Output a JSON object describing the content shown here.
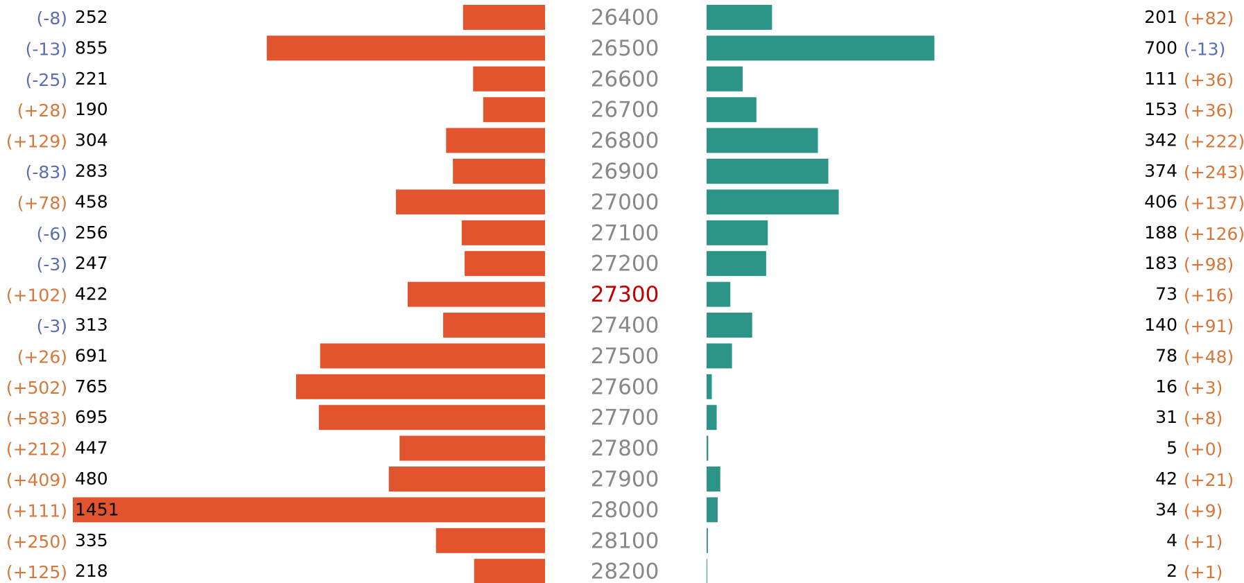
{
  "chart_data": {
    "type": "butterfly",
    "categories": [
      26400,
      26500,
      26600,
      26700,
      26800,
      26900,
      27000,
      27100,
      27200,
      27300,
      27400,
      27500,
      27600,
      27700,
      27800,
      27900,
      28000,
      28100,
      28200
    ],
    "highlight": 27300,
    "highlight_color": "#c00000",
    "category_color": "#888888",
    "positive_color": "#d9773a",
    "negative_color": "#5a6fb0",
    "series": [
      {
        "color": "#e2542e",
        "values": [
          252,
          855,
          221,
          190,
          304,
          283,
          458,
          256,
          247,
          422,
          313,
          691,
          765,
          695,
          447,
          480,
          1451,
          335,
          218
        ],
        "changes": [
          -8,
          -13,
          -25,
          28,
          129,
          -83,
          78,
          -6,
          -3,
          102,
          -3,
          26,
          502,
          583,
          212,
          409,
          111,
          250,
          125
        ],
        "change_labels": [
          "(-8)",
          "(-13)",
          "(-25)",
          "(+28)",
          "(+129)",
          "(-83)",
          "(+78)",
          "(-6)",
          "(-3)",
          "(+102)",
          "(-3)",
          "(+26)",
          "(+502)",
          "(+583)",
          "(+212)",
          "(+409)",
          "(+111)",
          "(+250)",
          "(+125)"
        ]
      },
      {
        "color": "#2d9488",
        "values": [
          201,
          700,
          111,
          153,
          342,
          374,
          406,
          188,
          183,
          73,
          140,
          78,
          16,
          31,
          5,
          42,
          34,
          4,
          2
        ],
        "changes": [
          82,
          -13,
          36,
          36,
          222,
          243,
          137,
          126,
          98,
          16,
          91,
          48,
          3,
          8,
          0,
          21,
          9,
          1,
          1
        ],
        "change_labels": [
          "(+82)",
          "(-13)",
          "(+36)",
          "(+36)",
          "(+222)",
          "(+243)",
          "(+137)",
          "(+126)",
          "(+98)",
          "(+16)",
          "(+91)",
          "(+48)",
          "(+3)",
          "(+8)",
          "(+0)",
          "(+21)",
          "(+9)",
          "(+1)",
          "(+1)"
        ]
      }
    ]
  }
}
